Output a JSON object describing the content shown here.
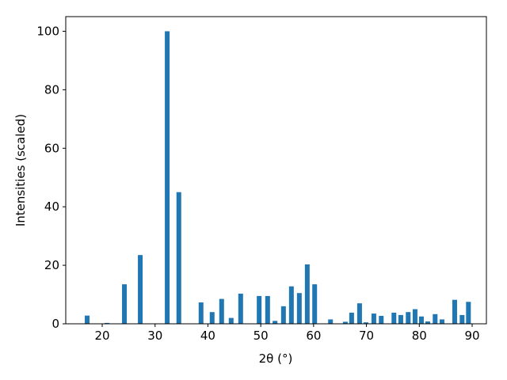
{
  "chart_data": {
    "type": "bar",
    "x_label": "2θ (°)",
    "y_label": "Intensities (scaled)",
    "x": [
      17.15,
      20.9,
      24.2,
      27.2,
      32.3,
      34.5,
      38.7,
      40.8,
      42.6,
      44.4,
      46.2,
      49.7,
      51.3,
      52.7,
      54.3,
      55.8,
      57.3,
      58.8,
      60.2,
      63.2,
      66.0,
      67.2,
      68.7,
      69.9,
      71.4,
      72.8,
      75.2,
      76.5,
      77.9,
      79.2,
      80.4,
      81.6,
      83.0,
      84.3,
      86.7,
      88.1,
      89.3
    ],
    "values": [
      2.8,
      0.3,
      13.5,
      23.5,
      100,
      45,
      7.3,
      4,
      8.5,
      2,
      10.3,
      9.5,
      9.5,
      1,
      6,
      12.8,
      10.5,
      20.3,
      13.5,
      1.5,
      0.7,
      3.8,
      7,
      0.5,
      3.5,
      2.7,
      3.8,
      3,
      4,
      5,
      2.5,
      0.8,
      3.3,
      1.5,
      8.2,
      3,
      7.5
    ],
    "color": "#1f77b4",
    "xlim": [
      13.1,
      92.7
    ],
    "xticks": [
      20,
      30,
      40,
      50,
      60,
      70,
      80,
      90
    ],
    "ylim": [
      0,
      105
    ],
    "yticks": [
      0,
      20,
      40,
      60,
      80,
      100
    ]
  }
}
